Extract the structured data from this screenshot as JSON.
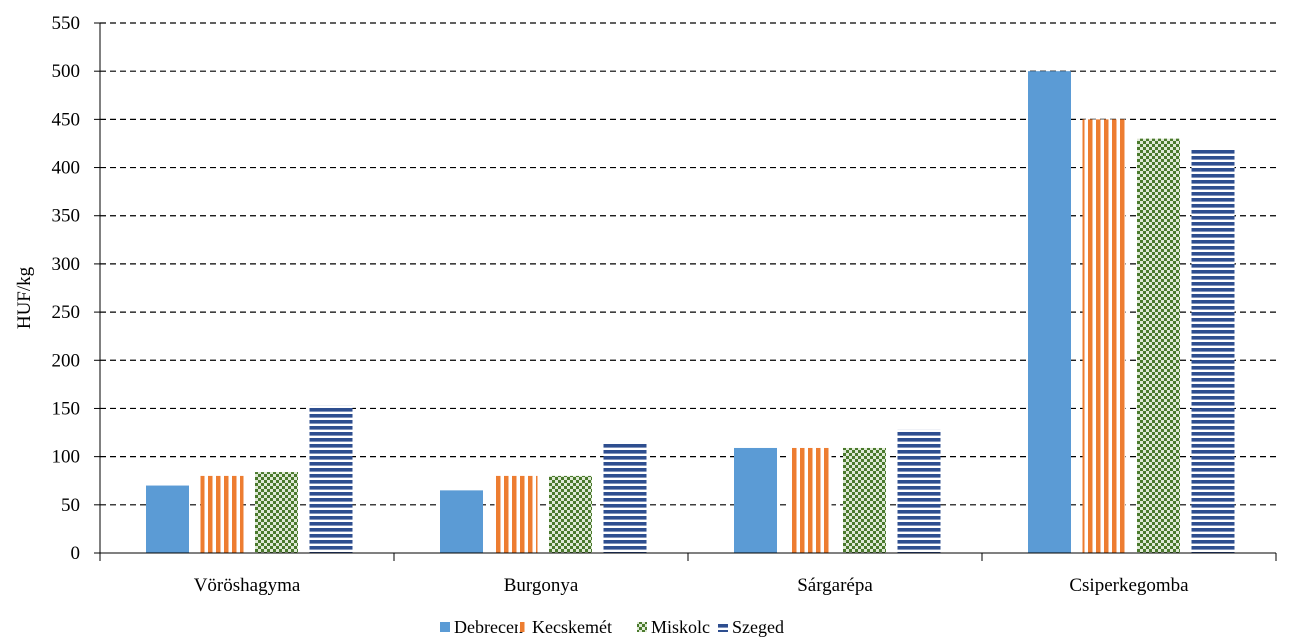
{
  "chart_data": {
    "type": "bar",
    "title": "",
    "xlabel": "",
    "ylabel": "HUF/kg",
    "ylim": [
      0,
      550
    ],
    "yticks": [
      0,
      50,
      100,
      150,
      200,
      250,
      300,
      350,
      400,
      450,
      500,
      550
    ],
    "grid": true,
    "legend_position": "bottom-center",
    "categories": [
      "Vöröshagyma",
      "Burgonya",
      "Sárgarépa",
      "Csiperkegomba"
    ],
    "series": [
      {
        "name": "Debrecen",
        "values": [
          70,
          65,
          109,
          500
        ],
        "color": "#5b9bd5",
        "pattern": "solid"
      },
      {
        "name": "Kecskemét",
        "values": [
          80,
          80,
          109,
          450
        ],
        "color": "#ed7d31",
        "pattern": "vertical-stripes"
      },
      {
        "name": "Miskolc",
        "values": [
          84,
          80,
          109,
          430
        ],
        "color": "#4a7a2c",
        "pattern": "checkerboard"
      },
      {
        "name": "Szeged",
        "values": [
          153,
          115,
          128,
          420
        ],
        "color": "#2e4e8f",
        "pattern": "horizontal-stripes"
      }
    ]
  }
}
